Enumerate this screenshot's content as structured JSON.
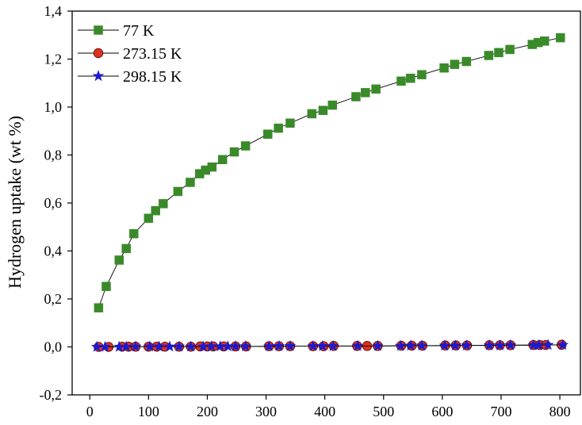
{
  "chart_data": {
    "type": "scatter",
    "title": "",
    "xlabel": "",
    "ylabel": "Hydrogen uptake (wt %)",
    "xlim": [
      -30,
      835
    ],
    "ylim": [
      -0.2,
      1.4
    ],
    "xticks": [
      0,
      100,
      200,
      300,
      400,
      500,
      600,
      700,
      800
    ],
    "yticks": [
      -0.2,
      0.0,
      0.2,
      0.4,
      0.6,
      0.8,
      1.0,
      1.2,
      1.4
    ],
    "ytick_labels": [
      "-0,2",
      "0,0",
      "0,2",
      "0,4",
      "0,6",
      "0,8",
      "1,0",
      "1,2",
      "1,4"
    ],
    "grid": false,
    "legend_position": "top-left",
    "series": [
      {
        "name": "77 K",
        "marker": "square",
        "color": "#3a8a2a",
        "x": [
          15,
          28,
          50,
          62,
          75,
          100,
          112,
          125,
          150,
          171,
          187,
          197,
          208,
          226,
          246,
          265,
          303,
          321,
          341,
          378,
          397,
          413,
          453,
          469,
          487,
          530,
          546,
          565,
          603,
          621,
          641,
          679,
          696,
          715,
          753,
          763,
          774,
          801
        ],
        "y": [
          0.163,
          0.252,
          0.362,
          0.41,
          0.472,
          0.536,
          0.568,
          0.597,
          0.648,
          0.686,
          0.722,
          0.737,
          0.75,
          0.781,
          0.813,
          0.838,
          0.887,
          0.912,
          0.933,
          0.972,
          0.986,
          1.008,
          1.043,
          1.06,
          1.075,
          1.108,
          1.12,
          1.135,
          1.163,
          1.178,
          1.19,
          1.215,
          1.227,
          1.24,
          1.261,
          1.269,
          1.275,
          1.289
        ]
      },
      {
        "name": "273.15 K",
        "marker": "circle",
        "color": "#e03020",
        "x": [
          15,
          32,
          55,
          66,
          78,
          100,
          114,
          128,
          152,
          172,
          188,
          200,
          210,
          228,
          248,
          266,
          305,
          322,
          341,
          380,
          398,
          415,
          455,
          472,
          490,
          530,
          548,
          566,
          605,
          623,
          642,
          680,
          698,
          716,
          755,
          766,
          776,
          803
        ],
        "y": [
          0.0,
          0.0,
          0.001,
          0.001,
          0.001,
          0.001,
          0.001,
          0.001,
          0.001,
          0.001,
          0.002,
          0.002,
          0.002,
          0.002,
          0.002,
          0.002,
          0.003,
          0.003,
          0.003,
          0.003,
          0.003,
          0.004,
          0.004,
          0.004,
          0.004,
          0.005,
          0.005,
          0.005,
          0.006,
          0.006,
          0.006,
          0.007,
          0.007,
          0.007,
          0.008,
          0.008,
          0.008,
          0.009
        ]
      },
      {
        "name": "298.15 K",
        "marker": "star",
        "color": "#1a1ad0",
        "x": [
          12,
          26,
          50,
          62,
          78,
          102,
          118,
          136,
          152,
          172,
          193,
          207,
          222,
          235,
          248,
          265,
          305,
          322,
          341,
          380,
          396,
          414,
          456,
          490,
          529,
          546,
          565,
          604,
          622,
          641,
          680,
          698,
          716,
          755,
          764,
          780,
          805
        ],
        "y": [
          0.0,
          0.0,
          0.0,
          0.0,
          0.001,
          0.001,
          0.001,
          0.001,
          0.001,
          0.001,
          0.001,
          0.002,
          0.002,
          0.002,
          0.002,
          0.002,
          0.002,
          0.003,
          0.003,
          0.003,
          0.003,
          0.003,
          0.004,
          0.004,
          0.004,
          0.005,
          0.005,
          0.005,
          0.005,
          0.006,
          0.006,
          0.006,
          0.007,
          0.007,
          0.007,
          0.008,
          0.008
        ]
      }
    ]
  }
}
